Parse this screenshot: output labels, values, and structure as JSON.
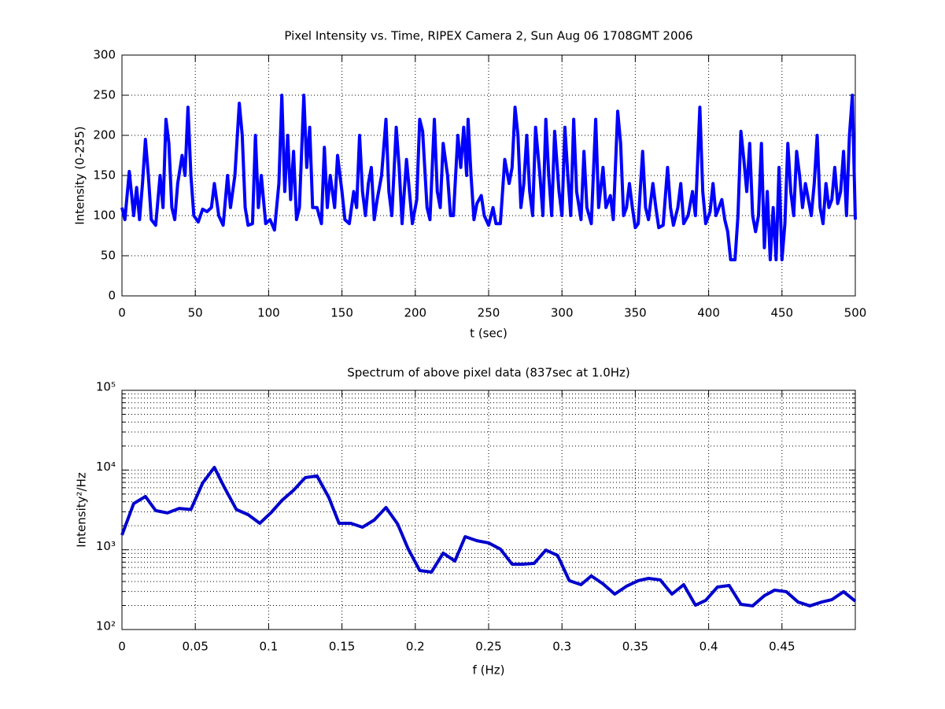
{
  "chart_data": [
    {
      "type": "line",
      "title": "Pixel Intensity vs. Time, RIPEX Camera 2, Sun Aug 06 1708GMT 2006",
      "xlabel": "t (sec)",
      "ylabel": "Intensity (0-255)",
      "color": "#0000ff",
      "grid": true,
      "log": false,
      "xlim": [
        0,
        500
      ],
      "xticks": [
        0,
        50,
        100,
        150,
        200,
        250,
        300,
        350,
        400,
        450,
        500
      ],
      "ylim": [
        0,
        300
      ],
      "yticks": [
        0,
        50,
        100,
        150,
        200,
        250,
        300
      ],
      "x": [
        0,
        2,
        5,
        8,
        10,
        12,
        14,
        16,
        18,
        20,
        23,
        26,
        28,
        30,
        32,
        34,
        36,
        38,
        41,
        43,
        45,
        47,
        49,
        52,
        55,
        58,
        61,
        63,
        66,
        69,
        72,
        74,
        77,
        80,
        82,
        84,
        86,
        89,
        91,
        93,
        95,
        98,
        101,
        104,
        107,
        109,
        111,
        113,
        115,
        117,
        119,
        121,
        124,
        126,
        128,
        130,
        133,
        136,
        138,
        140,
        142,
        145,
        147,
        150,
        152,
        155,
        158,
        160,
        162,
        164,
        166,
        168,
        170,
        172,
        174,
        177,
        180,
        182,
        184,
        187,
        189,
        191,
        194,
        196,
        198,
        201,
        203,
        205,
        208,
        210,
        213,
        215,
        217,
        219,
        222,
        224,
        226,
        229,
        231,
        233,
        235,
        236,
        238,
        240,
        242,
        245,
        247,
        250,
        253,
        255,
        258,
        261,
        264,
        266,
        268,
        270,
        272,
        274,
        276,
        278,
        280,
        282,
        285,
        287,
        289,
        291,
        293,
        295,
        298,
        300,
        302,
        304,
        306,
        308,
        310,
        313,
        315,
        317,
        320,
        323,
        325,
        328,
        330,
        333,
        335,
        338,
        340,
        342,
        344,
        346,
        348,
        350,
        352,
        355,
        357,
        359,
        362,
        364,
        366,
        369,
        372,
        374,
        376,
        379,
        381,
        383,
        386,
        389,
        391,
        394,
        396,
        398,
        401,
        403,
        405,
        407,
        409,
        411,
        413,
        415,
        418,
        420,
        422,
        424,
        426,
        428,
        430,
        432,
        434,
        436,
        438,
        440,
        442,
        444,
        446,
        448,
        450,
        452,
        454,
        456,
        458,
        460,
        462,
        464,
        466,
        468,
        470,
        472,
        474,
        476,
        478,
        480,
        482,
        484,
        486,
        488,
        490,
        492,
        494,
        496,
        498,
        500
      ],
      "values": [
        110,
        95,
        155,
        100,
        135,
        95,
        140,
        195,
        150,
        95,
        88,
        150,
        110,
        220,
        190,
        110,
        95,
        140,
        175,
        150,
        235,
        150,
        100,
        92,
        108,
        105,
        110,
        140,
        100,
        88,
        150,
        110,
        150,
        240,
        200,
        110,
        88,
        90,
        200,
        110,
        150,
        90,
        95,
        82,
        140,
        250,
        130,
        200,
        120,
        180,
        95,
        110,
        250,
        160,
        210,
        110,
        110,
        90,
        185,
        110,
        150,
        110,
        175,
        130,
        95,
        90,
        130,
        110,
        200,
        130,
        100,
        140,
        160,
        95,
        120,
        150,
        220,
        130,
        100,
        210,
        160,
        90,
        170,
        130,
        90,
        120,
        220,
        205,
        110,
        95,
        220,
        130,
        110,
        190,
        150,
        100,
        100,
        200,
        160,
        210,
        150,
        220,
        150,
        95,
        115,
        125,
        100,
        88,
        110,
        90,
        90,
        170,
        140,
        160,
        235,
        200,
        110,
        140,
        200,
        130,
        100,
        210,
        150,
        100,
        220,
        150,
        100,
        205,
        130,
        100,
        210,
        150,
        100,
        220,
        130,
        95,
        180,
        110,
        90,
        220,
        110,
        160,
        110,
        125,
        95,
        230,
        190,
        100,
        110,
        140,
        110,
        85,
        90,
        180,
        110,
        95,
        140,
        110,
        85,
        88,
        160,
        110,
        88,
        110,
        140,
        90,
        100,
        130,
        100,
        235,
        130,
        90,
        105,
        140,
        100,
        110,
        120,
        95,
        80,
        45,
        45,
        100,
        205,
        170,
        130,
        190,
        100,
        80,
        100,
        190,
        60,
        130,
        45,
        110,
        45,
        160,
        45,
        90,
        190,
        130,
        100,
        180,
        150,
        110,
        140,
        120,
        100,
        140,
        200,
        110,
        90,
        140,
        110,
        120,
        160,
        115,
        130,
        180,
        100,
        200,
        250,
        95
      ]
    },
    {
      "type": "line",
      "title": "Spectrum of above pixel data (837sec at 1.0Hz)",
      "xlabel": "f (Hz)",
      "ylabel": "Intensity²/Hz",
      "color": "#0000cc",
      "grid": true,
      "log": true,
      "xlim": [
        0,
        0.5
      ],
      "xticks": [
        0,
        0.05,
        0.1,
        0.15,
        0.2,
        0.25,
        0.3,
        0.35,
        0.4,
        0.45
      ],
      "ylim": [
        100,
        100000
      ],
      "yticks": [
        {
          "value": 100,
          "label": "10²"
        },
        {
          "value": 1000,
          "label": "10³"
        },
        {
          "value": 10000,
          "label": "10⁴"
        },
        {
          "value": 100000,
          "label": "10⁵"
        }
      ],
      "yminorticks": [
        200,
        300,
        400,
        500,
        600,
        700,
        800,
        900,
        2000,
        3000,
        4000,
        5000,
        6000,
        7000,
        8000,
        9000,
        20000,
        30000,
        40000,
        50000,
        60000,
        70000,
        80000,
        90000
      ],
      "x": [
        0,
        0.008,
        0.016,
        0.023,
        0.031,
        0.039,
        0.047,
        0.055,
        0.063,
        0.07,
        0.078,
        0.086,
        0.094,
        0.102,
        0.109,
        0.117,
        0.125,
        0.133,
        0.141,
        0.148,
        0.156,
        0.164,
        0.172,
        0.18,
        0.188,
        0.195,
        0.203,
        0.211,
        0.219,
        0.227,
        0.234,
        0.242,
        0.25,
        0.258,
        0.266,
        0.273,
        0.281,
        0.289,
        0.297,
        0.305,
        0.313,
        0.32,
        0.328,
        0.336,
        0.344,
        0.352,
        0.359,
        0.367,
        0.375,
        0.383,
        0.391,
        0.398,
        0.406,
        0.414,
        0.422,
        0.43,
        0.438,
        0.445,
        0.453,
        0.461,
        0.469,
        0.477,
        0.484,
        0.492,
        0.5
      ],
      "values": [
        1530,
        3800,
        4660,
        3100,
        2900,
        3300,
        3200,
        6860,
        10800,
        5980,
        3200,
        2760,
        2150,
        2970,
        4150,
        5580,
        8040,
        8420,
        4550,
        2150,
        2150,
        1920,
        2360,
        3390,
        2100,
        1040,
        550,
        525,
        908,
        723,
        1460,
        1300,
        1220,
        1020,
        660,
        660,
        675,
        990,
        850,
        410,
        365,
        470,
        374,
        278,
        349,
        410,
        438,
        419,
        278,
        365,
        202,
        232,
        341,
        357,
        207,
        198,
        266,
        312,
        298,
        221,
        198,
        221,
        237,
        298,
        227
      ]
    }
  ]
}
